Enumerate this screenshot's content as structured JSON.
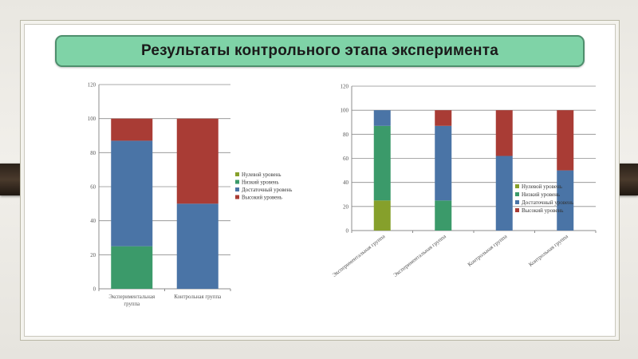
{
  "slide": {
    "title": "Результаты контрольного этапа эксперимента"
  },
  "colors": {
    "zero": "#86a02b",
    "low": "#3b9a6a",
    "sufficient": "#4a74a6",
    "high": "#a93c35",
    "grid": "#8c8c8c",
    "axis_text": "#555555"
  },
  "chart_data": [
    {
      "type": "bar",
      "stacked": true,
      "categories": [
        "Экспериментальная группа",
        "Контрольная группа"
      ],
      "series": [
        {
          "name": "Нулевой уровень",
          "values": [
            0,
            0
          ],
          "color": "#86a02b"
        },
        {
          "name": "Низкий уровень",
          "values": [
            25,
            0
          ],
          "color": "#3b9a6a"
        },
        {
          "name": "Достаточный уровень",
          "values": [
            62,
            50
          ],
          "color": "#4a74a6"
        },
        {
          "name": "Высокий уровень",
          "values": [
            13,
            50
          ],
          "color": "#a93c35"
        }
      ],
      "ylim": [
        0,
        120
      ],
      "yticks": [
        0,
        20,
        40,
        60,
        80,
        100,
        120
      ],
      "grid": true,
      "legend": "right"
    },
    {
      "type": "bar",
      "stacked": true,
      "categories": [
        "Экспериментальная группа",
        "Экспериментальная группа",
        "Контрольная группа",
        "Контрольная группа"
      ],
      "category_labels_shown": [
        "Экспериментальная группа",
        "Экспериментальная группа",
        "Контрольная группа",
        "Контрольная группа"
      ],
      "series": [
        {
          "name": "Нулевой уровень",
          "values": [
            25,
            0,
            0,
            0
          ],
          "color": "#86a02b"
        },
        {
          "name": "Низкий уровень",
          "values": [
            62,
            25,
            0,
            0
          ],
          "color": "#3b9a6a"
        },
        {
          "name": "Достаточный уровень",
          "values": [
            13,
            62,
            62,
            50
          ],
          "color": "#4a74a6"
        },
        {
          "name": "Высокий уровень",
          "values": [
            0,
            13,
            38,
            50
          ],
          "color": "#a93c35"
        }
      ],
      "ylim": [
        0,
        120
      ],
      "yticks": [
        0,
        20,
        40,
        60,
        80,
        100,
        120
      ],
      "grid": true,
      "legend": "right"
    }
  ]
}
